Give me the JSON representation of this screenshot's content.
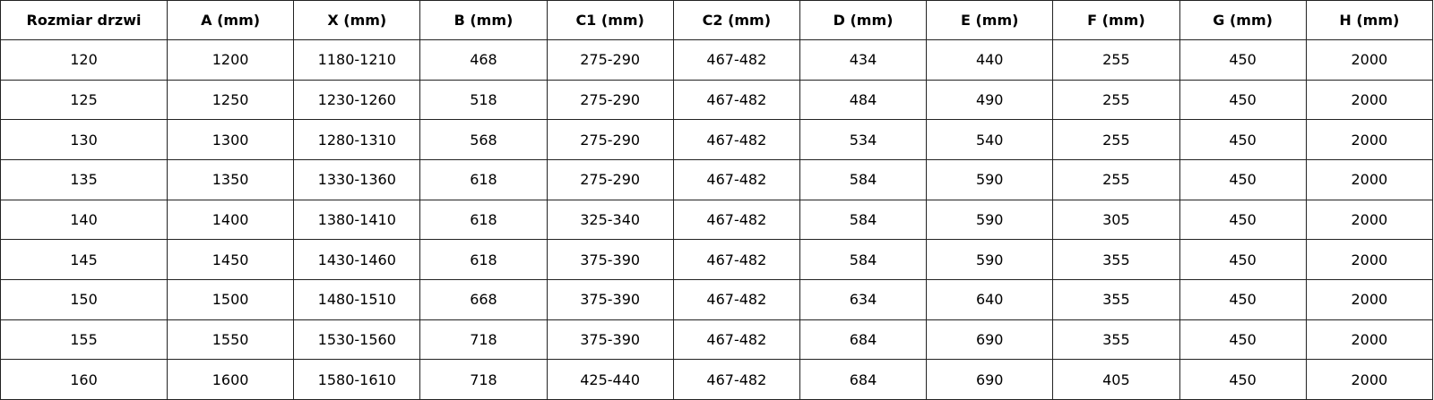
{
  "table": {
    "headers": [
      "Rozmiar drzwi",
      "A (mm)",
      "X (mm)",
      "B (mm)",
      "C1 (mm)",
      "C2 (mm)",
      "D (mm)",
      "E (mm)",
      "F (mm)",
      "G (mm)",
      "H (mm)"
    ],
    "rows": [
      [
        "120",
        "1200",
        "1180-1210",
        "468",
        "275-290",
        "467-482",
        "434",
        "440",
        "255",
        "450",
        "2000"
      ],
      [
        "125",
        "1250",
        "1230-1260",
        "518",
        "275-290",
        "467-482",
        "484",
        "490",
        "255",
        "450",
        "2000"
      ],
      [
        "130",
        "1300",
        "1280-1310",
        "568",
        "275-290",
        "467-482",
        "534",
        "540",
        "255",
        "450",
        "2000"
      ],
      [
        "135",
        "1350",
        "1330-1360",
        "618",
        "275-290",
        "467-482",
        "584",
        "590",
        "255",
        "450",
        "2000"
      ],
      [
        "140",
        "1400",
        "1380-1410",
        "618",
        "325-340",
        "467-482",
        "584",
        "590",
        "305",
        "450",
        "2000"
      ],
      [
        "145",
        "1450",
        "1430-1460",
        "618",
        "375-390",
        "467-482",
        "584",
        "590",
        "355",
        "450",
        "2000"
      ],
      [
        "150",
        "1500",
        "1480-1510",
        "668",
        "375-390",
        "467-482",
        "634",
        "640",
        "355",
        "450",
        "2000"
      ],
      [
        "155",
        "1550",
        "1530-1560",
        "718",
        "375-390",
        "467-482",
        "684",
        "690",
        "355",
        "450",
        "2000"
      ],
      [
        "160",
        "1600",
        "1580-1610",
        "718",
        "425-440",
        "467-482",
        "684",
        "690",
        "405",
        "450",
        "2000"
      ]
    ]
  }
}
